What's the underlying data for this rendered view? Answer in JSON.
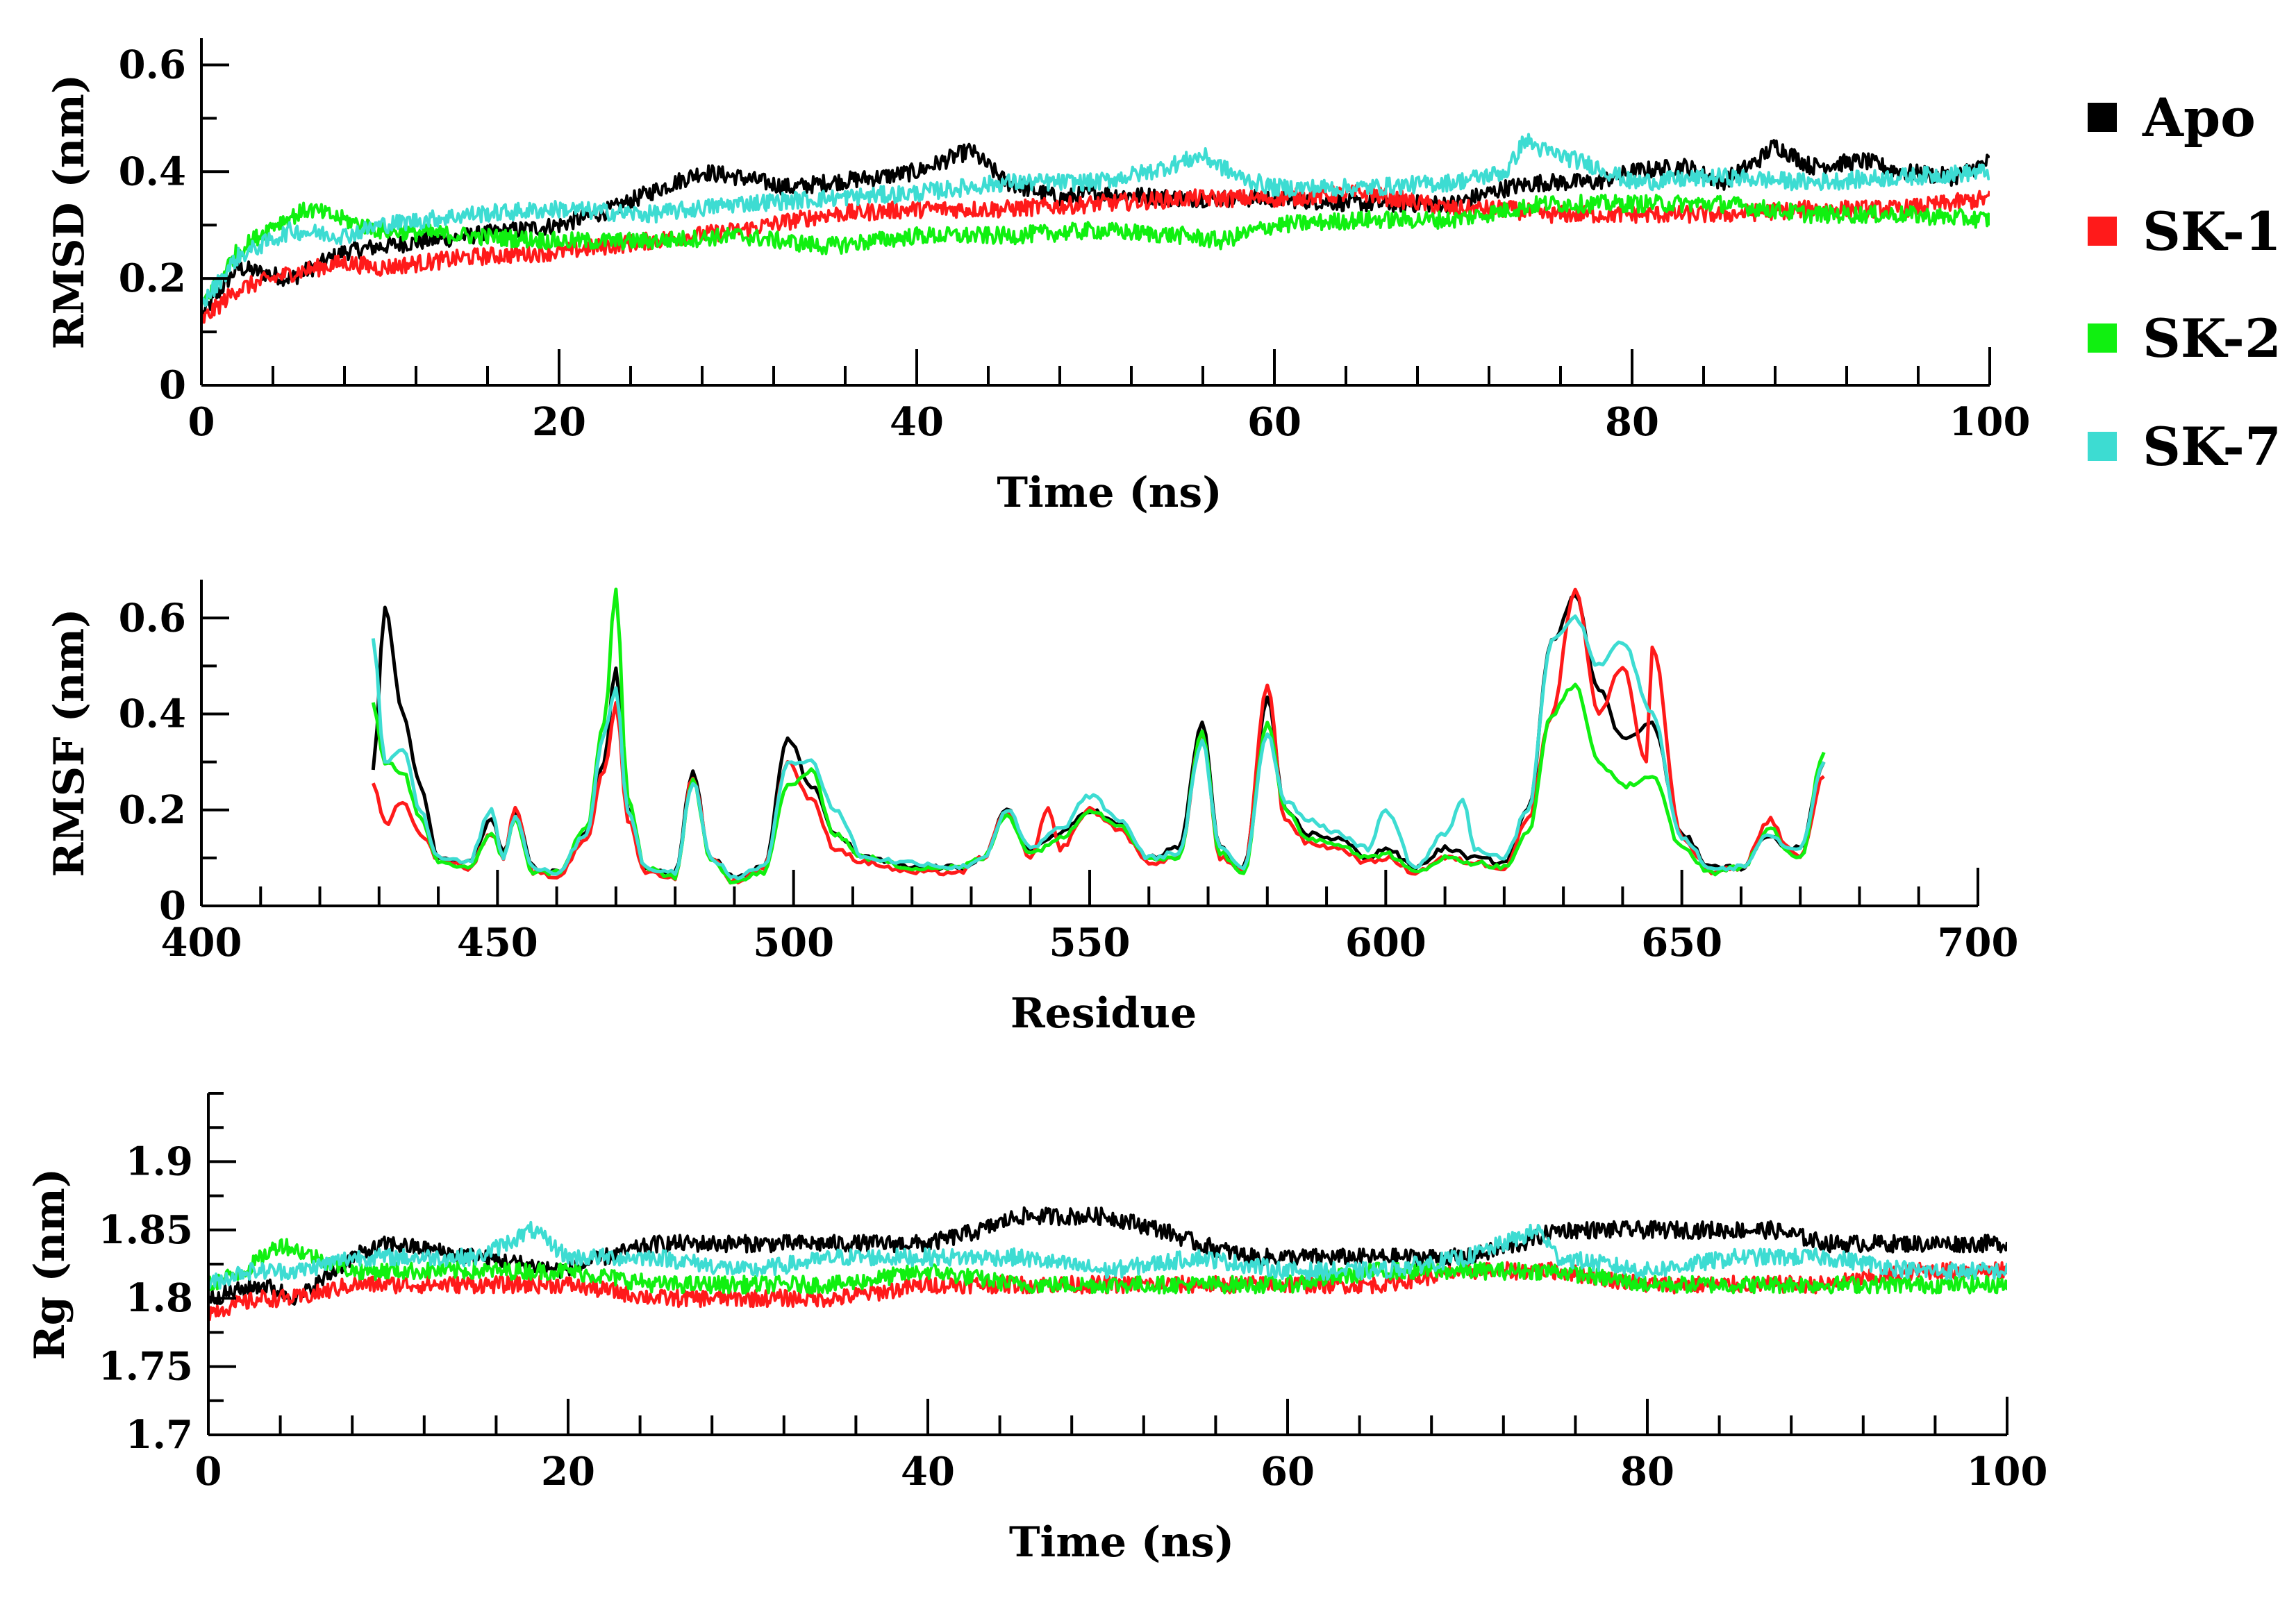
{
  "legend": [
    {
      "label": "Apo",
      "color": "#000000"
    },
    {
      "label": "SK-1",
      "color": "#ff1a1a"
    },
    {
      "label": "SK-2",
      "color": "#10f010"
    },
    {
      "label": "SK-7",
      "color": "#3ddcd2"
    }
  ],
  "chart_data": [
    {
      "type": "line",
      "title": "",
      "xlabel": "Time (ns)",
      "ylabel": "RMSD (nm)",
      "xlim": [
        0,
        100
      ],
      "ylim": [
        0,
        0.65
      ],
      "xticks": [
        0,
        20,
        40,
        60,
        80,
        100
      ],
      "xtick_labels": [
        "0",
        "20",
        "40",
        "60",
        "80",
        "100"
      ],
      "yticks": [
        0,
        0.2,
        0.4,
        0.6
      ],
      "ytick_labels": [
        "0",
        "0.2",
        "0.4",
        "0.6"
      ],
      "series": [
        {
          "name": "Apo",
          "color": "#000000",
          "x": [
            0,
            2,
            5,
            8,
            10,
            15,
            20,
            23,
            25,
            28,
            30,
            33,
            35,
            38,
            40,
            43,
            45,
            48,
            50,
            55,
            60,
            65,
            70,
            73,
            75,
            78,
            80,
            83,
            85,
            87,
            88,
            90,
            93,
            95,
            98,
            100
          ],
          "y": [
            0.13,
            0.22,
            0.2,
            0.25,
            0.26,
            0.28,
            0.3,
            0.33,
            0.36,
            0.4,
            0.39,
            0.37,
            0.38,
            0.39,
            0.4,
            0.44,
            0.38,
            0.35,
            0.36,
            0.35,
            0.35,
            0.34,
            0.34,
            0.37,
            0.38,
            0.38,
            0.4,
            0.41,
            0.38,
            0.42,
            0.45,
            0.41,
            0.42,
            0.4,
            0.39,
            0.42
          ]
        },
        {
          "name": "SK-1",
          "color": "#ff1a1a",
          "x": [
            0,
            2,
            5,
            8,
            10,
            15,
            20,
            25,
            30,
            35,
            40,
            45,
            50,
            55,
            60,
            65,
            70,
            73,
            75,
            80,
            85,
            90,
            95,
            100
          ],
          "y": [
            0.12,
            0.18,
            0.21,
            0.23,
            0.22,
            0.24,
            0.25,
            0.27,
            0.29,
            0.32,
            0.33,
            0.33,
            0.34,
            0.35,
            0.35,
            0.36,
            0.33,
            0.33,
            0.32,
            0.32,
            0.32,
            0.33,
            0.33,
            0.35
          ]
        },
        {
          "name": "SK-2",
          "color": "#10f010",
          "x": [
            0,
            2,
            4,
            6,
            8,
            10,
            15,
            20,
            25,
            30,
            35,
            40,
            45,
            50,
            55,
            57,
            60,
            65,
            70,
            75,
            80,
            85,
            90,
            95,
            100
          ],
          "y": [
            0.15,
            0.25,
            0.3,
            0.33,
            0.31,
            0.29,
            0.28,
            0.27,
            0.27,
            0.28,
            0.26,
            0.28,
            0.28,
            0.29,
            0.28,
            0.27,
            0.3,
            0.31,
            0.31,
            0.34,
            0.34,
            0.34,
            0.32,
            0.32,
            0.31
          ]
        },
        {
          "name": "SK-7",
          "color": "#3ddcd2",
          "x": [
            0,
            2,
            5,
            8,
            10,
            15,
            20,
            25,
            30,
            35,
            40,
            45,
            50,
            53,
            56,
            58,
            60,
            65,
            70,
            73,
            74,
            75,
            78,
            80,
            85,
            90,
            95,
            100
          ],
          "y": [
            0.15,
            0.24,
            0.29,
            0.28,
            0.3,
            0.32,
            0.33,
            0.32,
            0.34,
            0.35,
            0.36,
            0.38,
            0.38,
            0.4,
            0.43,
            0.39,
            0.37,
            0.37,
            0.38,
            0.4,
            0.46,
            0.44,
            0.41,
            0.38,
            0.39,
            0.38,
            0.39,
            0.4
          ]
        }
      ]
    },
    {
      "type": "line",
      "title": "",
      "xlabel": "Residue",
      "ylabel": "RMSF (nm)",
      "xlim": [
        400,
        700
      ],
      "ylim": [
        0,
        0.68
      ],
      "xticks": [
        400,
        450,
        500,
        550,
        600,
        650,
        700
      ],
      "xtick_labels": [
        "400",
        "450",
        "500",
        "550",
        "600",
        "650",
        "700"
      ],
      "yticks": [
        0,
        0.2,
        0.4,
        0.6
      ],
      "ytick_labels": [
        "0",
        "0.2",
        "0.4",
        "0.6"
      ],
      "series": [
        {
          "name": "Apo",
          "color": "#000000",
          "x": [
            429,
            431,
            434,
            437,
            440,
            445,
            449,
            451,
            453,
            456,
            460,
            465,
            468,
            470,
            472,
            475,
            480,
            483,
            486,
            490,
            495,
            499,
            503,
            507,
            512,
            520,
            528,
            532,
            536,
            540,
            545,
            550,
            555,
            560,
            565,
            569,
            572,
            576,
            580,
            583,
            587,
            592,
            597,
            600,
            605,
            610,
            615,
            620,
            624,
            628,
            632,
            636,
            640,
            645,
            650,
            655,
            660,
            665,
            668,
            670,
            674
          ],
          "y": [
            0.28,
            0.62,
            0.4,
            0.25,
            0.1,
            0.09,
            0.18,
            0.11,
            0.2,
            0.08,
            0.07,
            0.15,
            0.3,
            0.5,
            0.2,
            0.08,
            0.07,
            0.28,
            0.1,
            0.06,
            0.08,
            0.35,
            0.25,
            0.15,
            0.1,
            0.08,
            0.08,
            0.1,
            0.2,
            0.12,
            0.15,
            0.2,
            0.17,
            0.1,
            0.12,
            0.38,
            0.12,
            0.08,
            0.43,
            0.2,
            0.15,
            0.14,
            0.1,
            0.12,
            0.08,
            0.12,
            0.1,
            0.09,
            0.2,
            0.55,
            0.65,
            0.45,
            0.35,
            0.38,
            0.15,
            0.08,
            0.08,
            0.15,
            0.12,
            0.12,
            0.3
          ]
        },
        {
          "name": "SK-1",
          "color": "#ff1a1a",
          "x": [
            429,
            431,
            434,
            437,
            440,
            445,
            449,
            451,
            453,
            456,
            460,
            465,
            468,
            470,
            472,
            475,
            480,
            483,
            486,
            490,
            495,
            499,
            503,
            507,
            512,
            520,
            528,
            532,
            536,
            540,
            543,
            545,
            550,
            555,
            560,
            565,
            569,
            572,
            576,
            580,
            583,
            587,
            592,
            597,
            600,
            605,
            610,
            615,
            620,
            624,
            628,
            632,
            636,
            640,
            644,
            645,
            650,
            655,
            660,
            665,
            668,
            670,
            674
          ],
          "y": [
            0.26,
            0.17,
            0.22,
            0.15,
            0.1,
            0.08,
            0.15,
            0.1,
            0.2,
            0.07,
            0.06,
            0.14,
            0.28,
            0.42,
            0.18,
            0.07,
            0.06,
            0.27,
            0.1,
            0.05,
            0.08,
            0.3,
            0.22,
            0.12,
            0.09,
            0.07,
            0.07,
            0.1,
            0.2,
            0.1,
            0.2,
            0.12,
            0.2,
            0.16,
            0.09,
            0.1,
            0.36,
            0.1,
            0.07,
            0.46,
            0.18,
            0.13,
            0.12,
            0.09,
            0.1,
            0.07,
            0.1,
            0.09,
            0.08,
            0.18,
            0.4,
            0.66,
            0.4,
            0.5,
            0.3,
            0.54,
            0.14,
            0.07,
            0.08,
            0.18,
            0.12,
            0.1,
            0.27
          ]
        },
        {
          "name": "SK-2",
          "color": "#10f010",
          "x": [
            429,
            431,
            434,
            437,
            440,
            445,
            449,
            451,
            453,
            456,
            460,
            465,
            468,
            470,
            472,
            475,
            480,
            483,
            486,
            490,
            495,
            499,
            503,
            507,
            512,
            520,
            528,
            532,
            536,
            540,
            545,
            550,
            555,
            560,
            565,
            569,
            572,
            576,
            580,
            583,
            587,
            592,
            597,
            600,
            605,
            610,
            615,
            620,
            624,
            628,
            632,
            636,
            640,
            645,
            650,
            655,
            660,
            665,
            668,
            670,
            674
          ],
          "y": [
            0.42,
            0.3,
            0.28,
            0.18,
            0.09,
            0.08,
            0.15,
            0.1,
            0.18,
            0.07,
            0.07,
            0.16,
            0.38,
            0.66,
            0.22,
            0.08,
            0.06,
            0.26,
            0.1,
            0.05,
            0.07,
            0.25,
            0.28,
            0.15,
            0.1,
            0.08,
            0.08,
            0.1,
            0.19,
            0.11,
            0.14,
            0.2,
            0.17,
            0.1,
            0.1,
            0.36,
            0.11,
            0.07,
            0.38,
            0.2,
            0.14,
            0.13,
            0.1,
            0.11,
            0.07,
            0.1,
            0.09,
            0.08,
            0.15,
            0.4,
            0.46,
            0.3,
            0.25,
            0.27,
            0.12,
            0.07,
            0.08,
            0.16,
            0.11,
            0.1,
            0.32
          ]
        },
        {
          "name": "SK-7",
          "color": "#3ddcd2",
          "x": [
            429,
            431,
            434,
            437,
            440,
            445,
            449,
            451,
            453,
            456,
            460,
            465,
            468,
            470,
            472,
            475,
            480,
            483,
            486,
            490,
            495,
            499,
            503,
            507,
            512,
            520,
            528,
            532,
            536,
            540,
            545,
            550,
            555,
            560,
            565,
            569,
            572,
            576,
            580,
            583,
            587,
            592,
            597,
            600,
            605,
            610,
            613,
            615,
            620,
            624,
            628,
            632,
            636,
            640,
            645,
            650,
            655,
            660,
            665,
            668,
            670,
            674
          ],
          "y": [
            0.56,
            0.3,
            0.33,
            0.2,
            0.1,
            0.09,
            0.2,
            0.1,
            0.19,
            0.08,
            0.07,
            0.15,
            0.36,
            0.45,
            0.2,
            0.08,
            0.07,
            0.26,
            0.1,
            0.06,
            0.08,
            0.3,
            0.3,
            0.2,
            0.1,
            0.09,
            0.08,
            0.1,
            0.2,
            0.12,
            0.16,
            0.23,
            0.18,
            0.1,
            0.11,
            0.34,
            0.12,
            0.08,
            0.36,
            0.22,
            0.18,
            0.15,
            0.12,
            0.2,
            0.08,
            0.15,
            0.22,
            0.12,
            0.1,
            0.2,
            0.55,
            0.6,
            0.5,
            0.55,
            0.4,
            0.14,
            0.08,
            0.08,
            0.15,
            0.12,
            0.12,
            0.3
          ]
        }
      ]
    },
    {
      "type": "line",
      "title": "",
      "xlabel": "Time (ns)",
      "ylabel": "Rg (nm)",
      "xlim": [
        0,
        100
      ],
      "ylim": [
        1.7,
        1.95
      ],
      "xticks": [
        0,
        20,
        40,
        60,
        80,
        100
      ],
      "xtick_labels": [
        "0",
        "20",
        "40",
        "60",
        "80",
        "100"
      ],
      "yticks": [
        1.7,
        1.75,
        1.8,
        1.85,
        1.9
      ],
      "ytick_labels": [
        "1.7",
        "1.75",
        "1.8",
        "1.85",
        "1.9"
      ],
      "series": [
        {
          "name": "Apo",
          "color": "#000000",
          "x": [
            0,
            3,
            5,
            8,
            10,
            15,
            20,
            22,
            25,
            30,
            35,
            40,
            43,
            45,
            48,
            50,
            53,
            55,
            58,
            60,
            65,
            70,
            73,
            75,
            78,
            80,
            83,
            85,
            87,
            90,
            95,
            98,
            100
          ],
          "y": [
            1.8,
            1.81,
            1.8,
            1.83,
            1.84,
            1.83,
            1.82,
            1.83,
            1.84,
            1.84,
            1.84,
            1.84,
            1.85,
            1.86,
            1.86,
            1.86,
            1.85,
            1.84,
            1.83,
            1.83,
            1.83,
            1.83,
            1.84,
            1.85,
            1.85,
            1.85,
            1.85,
            1.85,
            1.85,
            1.84,
            1.84,
            1.84,
            1.84
          ]
        },
        {
          "name": "SK-1",
          "color": "#ff1a1a",
          "x": [
            0,
            3,
            5,
            8,
            10,
            15,
            20,
            25,
            30,
            35,
            40,
            45,
            50,
            55,
            60,
            65,
            70,
            75,
            80,
            85,
            90,
            95,
            100
          ],
          "y": [
            1.79,
            1.8,
            1.8,
            1.81,
            1.81,
            1.81,
            1.81,
            1.8,
            1.8,
            1.8,
            1.81,
            1.81,
            1.81,
            1.81,
            1.81,
            1.81,
            1.82,
            1.82,
            1.81,
            1.81,
            1.81,
            1.82,
            1.82
          ]
        },
        {
          "name": "SK-2",
          "color": "#10f010",
          "x": [
            0,
            2,
            4,
            6,
            8,
            10,
            15,
            20,
            25,
            30,
            35,
            40,
            45,
            50,
            55,
            60,
            65,
            70,
            75,
            80,
            85,
            90,
            95,
            100
          ],
          "y": [
            1.81,
            1.82,
            1.84,
            1.83,
            1.82,
            1.82,
            1.82,
            1.82,
            1.81,
            1.81,
            1.81,
            1.82,
            1.81,
            1.81,
            1.81,
            1.81,
            1.82,
            1.82,
            1.82,
            1.81,
            1.81,
            1.81,
            1.81,
            1.81
          ]
        },
        {
          "name": "SK-7",
          "color": "#3ddcd2",
          "x": [
            0,
            2,
            5,
            8,
            10,
            15,
            18,
            20,
            25,
            30,
            35,
            40,
            45,
            50,
            55,
            60,
            65,
            70,
            74,
            75,
            80,
            85,
            90,
            95,
            100
          ],
          "y": [
            1.81,
            1.82,
            1.82,
            1.83,
            1.83,
            1.83,
            1.85,
            1.83,
            1.83,
            1.82,
            1.83,
            1.83,
            1.83,
            1.82,
            1.83,
            1.82,
            1.82,
            1.83,
            1.85,
            1.83,
            1.82,
            1.83,
            1.83,
            1.82,
            1.82
          ]
        }
      ]
    }
  ]
}
